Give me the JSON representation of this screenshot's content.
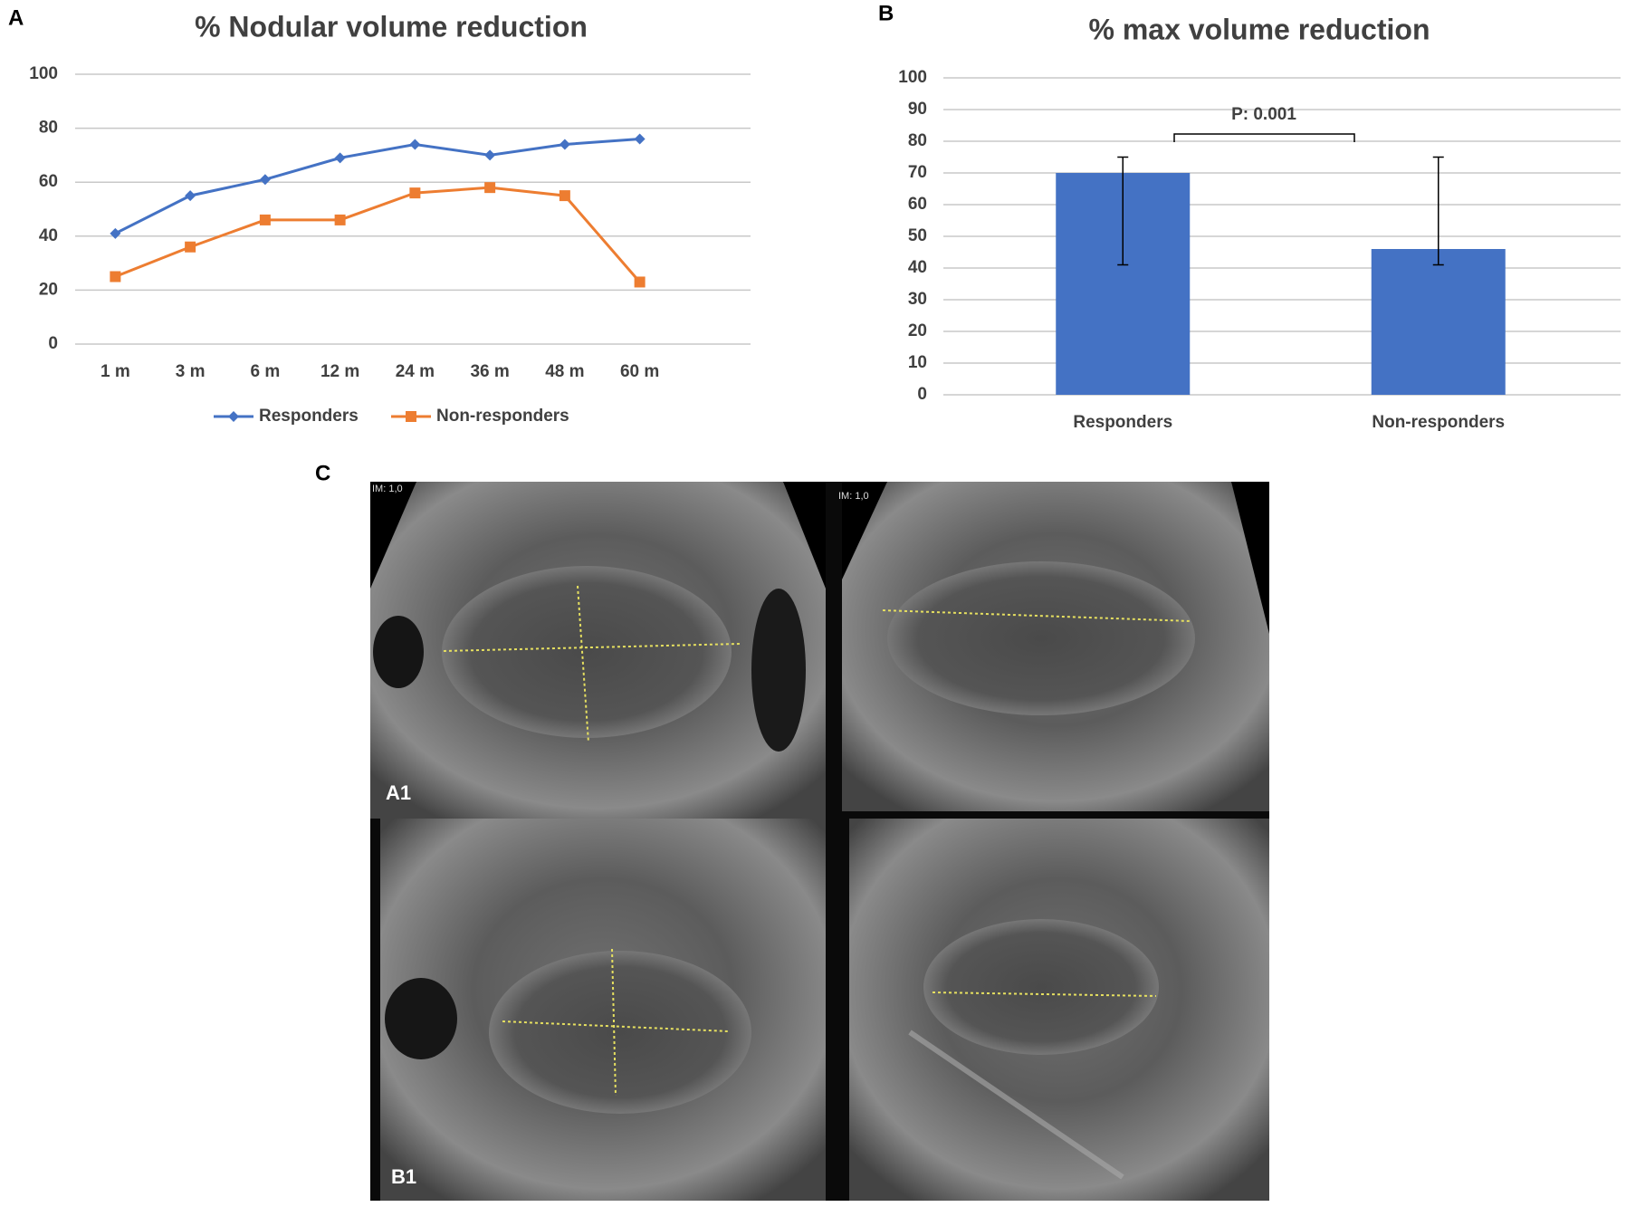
{
  "panel_labels": [
    "A",
    "B",
    "C"
  ],
  "chart_data": [
    {
      "type": "line",
      "title": "% Nodular volume reduction",
      "categories": [
        "1 m",
        "3 m",
        "6 m",
        "12 m",
        "24 m",
        "36 m",
        "48 m",
        "60 m"
      ],
      "series": [
        {
          "name": "Responders",
          "color": "#4472c4",
          "marker": "diamond",
          "values": [
            41,
            55,
            61,
            69,
            74,
            70,
            74,
            76
          ]
        },
        {
          "name": "Non-responders",
          "color": "#ed7d31",
          "marker": "square",
          "values": [
            25,
            36,
            46,
            46,
            56,
            58,
            55,
            23
          ]
        }
      ],
      "ylim": [
        0,
        100
      ],
      "yticks": [
        0,
        20,
        40,
        60,
        80,
        100
      ],
      "grid": true,
      "legend": "bottom"
    },
    {
      "type": "bar",
      "title": "% max volume reduction",
      "categories": [
        "Responders",
        "Non-responders"
      ],
      "values": [
        70,
        46
      ],
      "error_lower": [
        41,
        41
      ],
      "error_upper": [
        75,
        75
      ],
      "color": "#4472c4",
      "ylim": [
        0,
        100
      ],
      "yticks": [
        0,
        10,
        20,
        30,
        40,
        50,
        60,
        70,
        80,
        90,
        100
      ],
      "grid": true,
      "annotation": "P: 0.001"
    }
  ],
  "ultrasound": {
    "labels": [
      "A1",
      "B1"
    ],
    "scale_text": [
      "IM: 1,0",
      "IM: 1,0"
    ]
  }
}
